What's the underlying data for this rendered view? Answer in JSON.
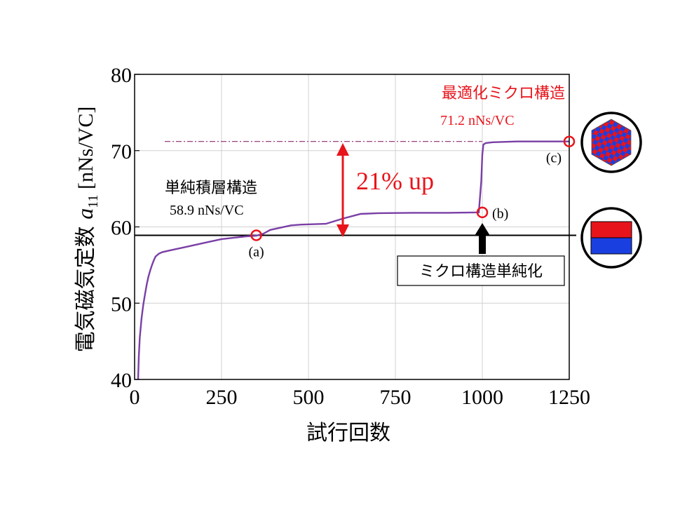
{
  "chart_data": {
    "type": "line",
    "xlabel": "試行回数",
    "ylabel_main": "電気磁気定数 ",
    "ylabel_sym": "a",
    "ylabel_sub": "11",
    "ylabel_unit": " [nNs/VC]",
    "xlim": [
      0,
      1250
    ],
    "ylim": [
      40,
      80
    ],
    "x_ticks": [
      0,
      250,
      500,
      750,
      1000,
      1250
    ],
    "y_ticks": [
      40,
      50,
      60,
      70,
      80
    ],
    "grid": true,
    "line_color": "#7a3fa6",
    "series": [
      {
        "x": [
          10,
          12,
          15,
          20,
          25,
          30,
          35,
          40,
          45,
          50,
          55,
          60,
          70,
          80,
          100,
          150,
          200,
          250,
          290,
          320,
          350,
          370,
          390,
          420,
          450,
          480,
          550,
          600,
          650,
          700,
          800,
          900,
          990,
          997,
          1000,
          1003,
          1010,
          1030,
          1100,
          1200,
          1250
        ],
        "y": [
          40,
          43,
          45.5,
          48,
          49.8,
          51.2,
          52.5,
          53.5,
          54.3,
          55,
          55.6,
          56.1,
          56.5,
          56.7,
          56.9,
          57.4,
          57.9,
          58.4,
          58.6,
          58.75,
          58.85,
          59.1,
          59.6,
          59.9,
          60.2,
          60.3,
          60.4,
          61.1,
          61.7,
          61.8,
          61.85,
          61.85,
          61.9,
          66,
          69.5,
          70.8,
          71.0,
          71.1,
          71.2,
          71.2,
          71.2
        ]
      }
    ],
    "reference_lines": [
      {
        "y": 58.9,
        "style": "solid",
        "color": "#000000"
      },
      {
        "y": 71.2,
        "style": "dashdot",
        "color": "#8b2a6e"
      }
    ],
    "markers": [
      {
        "label": "(a)",
        "x": 350,
        "y": 58.9
      },
      {
        "label": "(b)",
        "x": 1000,
        "y": 61.9
      },
      {
        "label": "(c)",
        "x": 1250,
        "y": 71.2
      }
    ],
    "annotations": {
      "simple_title": "単純積層構造",
      "simple_value": "58.9 nNs/VC",
      "optimal_title": "最適化ミクロ構造",
      "optimal_value": "71.2 nNs/VC",
      "gain_label": "21% up",
      "simplify_box": "ミクロ構造単純化"
    },
    "colors": {
      "accent_red": "#e8141b",
      "black": "#000000",
      "blue": "#1a3fe0"
    }
  }
}
